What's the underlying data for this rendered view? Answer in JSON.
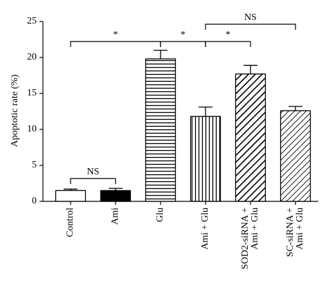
{
  "chart_data": {
    "type": "bar",
    "ylabel": "Apoptotic rate (%)",
    "categories": [
      "Control",
      "Ami",
      "Glu",
      "Ami + Glu",
      "SOD2-siRNA +\nAmi + Glu",
      "SC-siRNA +\nAmi + Glu"
    ],
    "values": [
      1.5,
      1.5,
      19.8,
      11.8,
      17.7,
      12.6
    ],
    "errors": [
      0.2,
      0.3,
      1.2,
      1.3,
      1.2,
      0.6
    ],
    "fills": [
      "white",
      "black",
      "horizontal-lines",
      "vertical-lines",
      "diagonal-thick",
      "diagonal-thin"
    ],
    "ylim": [
      0,
      25
    ],
    "yticks": [
      0,
      5,
      10,
      15,
      20,
      25
    ],
    "annotations": [
      "NS",
      "*",
      "*",
      "*",
      "NS"
    ]
  }
}
